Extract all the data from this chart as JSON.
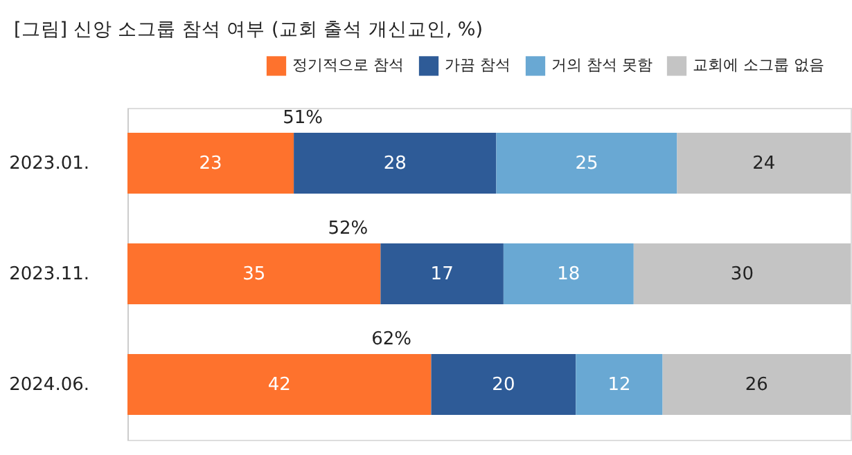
{
  "chart_data": {
    "type": "bar",
    "orientation": "horizontal",
    "stacked": true,
    "title": "[그림] 신앙 소그룹 참석 여부 (교회 출석 개신교인, %)",
    "categories": [
      "2023.01.",
      "2023.11.",
      "2024.06."
    ],
    "series": [
      {
        "name": "정기적으로 참석",
        "color": "#fe722d",
        "values": [
          23,
          35,
          42
        ]
      },
      {
        "name": "가끔 참석",
        "color": "#2e5b97",
        "values": [
          28,
          17,
          20
        ]
      },
      {
        "name": "거의 참석 못함",
        "color": "#69a8d3",
        "values": [
          25,
          18,
          12
        ]
      },
      {
        "name": "교회에 소그룹 없음",
        "color": "#c4c4c4",
        "values": [
          24,
          30,
          26
        ]
      }
    ],
    "xlim": [
      0,
      100
    ],
    "tick_labels": "y",
    "grid": false,
    "legend": "top right",
    "data_labels": true,
    "annotations": [
      "51%",
      "52%",
      "62%"
    ]
  }
}
